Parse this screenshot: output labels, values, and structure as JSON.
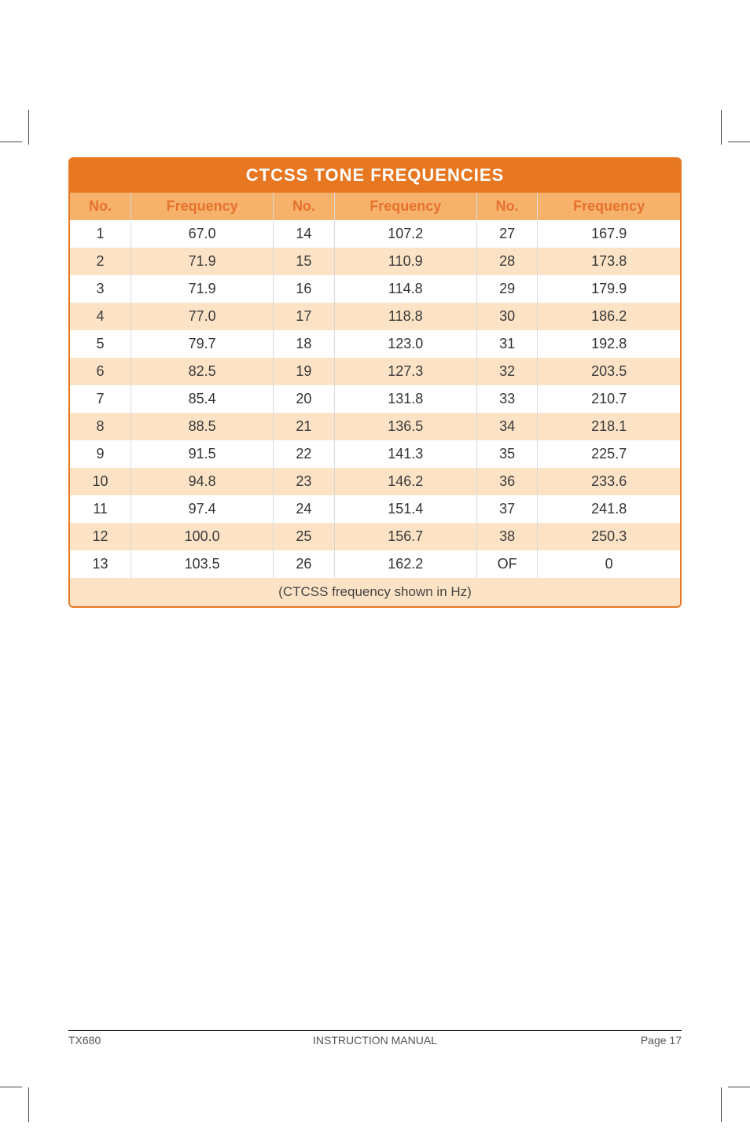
{
  "table": {
    "title": "CTCSS TONE FREQUENCIES",
    "headers": {
      "no": "No.",
      "freq": "Frequency"
    },
    "rows": [
      {
        "n1": "1",
        "f1": "67.0",
        "n2": "14",
        "f2": "107.2",
        "n3": "27",
        "f3": "167.9"
      },
      {
        "n1": "2",
        "f1": "71.9",
        "n2": "15",
        "f2": "110.9",
        "n3": "28",
        "f3": "173.8"
      },
      {
        "n1": "3",
        "f1": "71.9",
        "n2": "16",
        "f2": "114.8",
        "n3": "29",
        "f3": "179.9"
      },
      {
        "n1": "4",
        "f1": "77.0",
        "n2": "17",
        "f2": "118.8",
        "n3": "30",
        "f3": "186.2"
      },
      {
        "n1": "5",
        "f1": "79.7",
        "n2": "18",
        "f2": "123.0",
        "n3": "31",
        "f3": "192.8"
      },
      {
        "n1": "6",
        "f1": "82.5",
        "n2": "19",
        "f2": "127.3",
        "n3": "32",
        "f3": "203.5"
      },
      {
        "n1": "7",
        "f1": "85.4",
        "n2": "20",
        "f2": "131.8",
        "n3": "33",
        "f3": "210.7"
      },
      {
        "n1": "8",
        "f1": "88.5",
        "n2": "21",
        "f2": "136.5",
        "n3": "34",
        "f3": "218.1"
      },
      {
        "n1": "9",
        "f1": "91.5",
        "n2": "22",
        "f2": "141.3",
        "n3": "35",
        "f3": "225.7"
      },
      {
        "n1": "10",
        "f1": "94.8",
        "n2": "23",
        "f2": "146.2",
        "n3": "36",
        "f3": "233.6"
      },
      {
        "n1": "11",
        "f1": "97.4",
        "n2": "24",
        "f2": "151.4",
        "n3": "37",
        "f3": "241.8"
      },
      {
        "n1": "12",
        "f1": "100.0",
        "n2": "25",
        "f2": "156.7",
        "n3": "38",
        "f3": "250.3"
      },
      {
        "n1": "13",
        "f1": "103.5",
        "n2": "26",
        "f2": "162.2",
        "n3": "OF",
        "f3": "0"
      }
    ],
    "note": "(CTCSS frequency shown in Hz)",
    "colors": {
      "border": "#e87722",
      "title_bg": "#e87722",
      "title_fg": "#ffffff",
      "header_bg": "#f6b26b",
      "header_fg": "#e7712f",
      "row_even_bg": "#fce3c6",
      "row_odd_bg": "#ffffff",
      "cell_border": "#d9d9d9",
      "note_bg": "#fce3c6"
    },
    "fontsize": {
      "title": 22,
      "header": 18,
      "body": 18,
      "note": 17
    }
  },
  "footer": {
    "left": "TX680",
    "center": "INSTRUCTION MANUAL",
    "right": "Page 17"
  }
}
